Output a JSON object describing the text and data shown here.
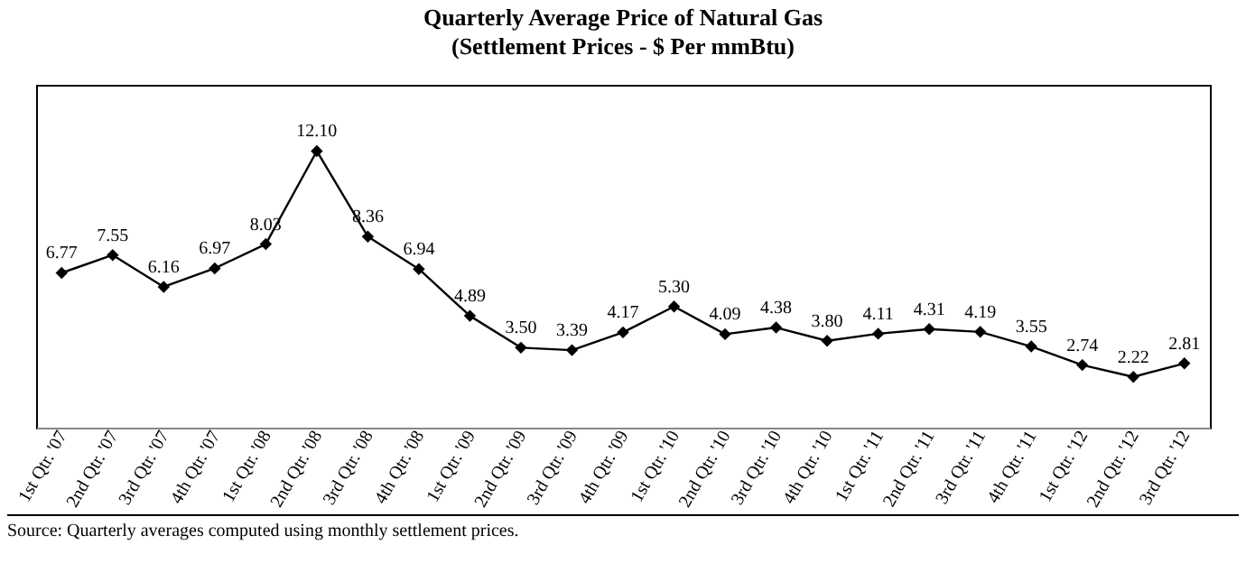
{
  "chart_data": {
    "type": "line",
    "title": "Quarterly Average Price of Natural Gas",
    "subtitle": "(Settlement Prices - $ Per mmBtu)",
    "categories": [
      "1st Qtr. '07",
      "2nd Qtr. '07",
      "3rd Qtr. '07",
      "4th Qtr. '07",
      "1st Qtr. '08",
      "2nd Qtr. '08",
      "3rd Qtr. '08",
      "4th Qtr. '08",
      "1st Qtr. '09",
      "2nd Qtr. '09",
      "3rd Qtr. '09",
      "4th Qtr. '09",
      "1st Qtr. '10",
      "2nd Qtr. '10",
      "3rd Qtr. '10",
      "4th Qtr. '10",
      "1st Qtr. '11",
      "2nd Qtr. '11",
      "3rd Qtr. '11",
      "4th Qtr. '11",
      "1st Qtr. '12",
      "2nd Qtr. '12",
      "3rd Qtr. '12"
    ],
    "series": [
      {
        "color": "#000000",
        "values": [
          6.77,
          7.55,
          6.16,
          6.97,
          8.03,
          12.1,
          8.36,
          6.94,
          4.89,
          3.5,
          3.39,
          4.17,
          5.3,
          4.09,
          4.38,
          3.8,
          4.11,
          4.31,
          4.19,
          3.55,
          2.74,
          2.22,
          2.81
        ],
        "value_labels": [
          "6.77",
          "7.55",
          "6.16",
          "6.97",
          "8.03",
          "12.10",
          "8.36",
          "6.94",
          "4.89",
          "3.50",
          "3.39",
          "4.17",
          "5.30",
          "4.09",
          "4.38",
          "3.80",
          "4.11",
          "4.31",
          "4.19",
          "3.55",
          "2.74",
          "2.22",
          "2.81"
        ]
      }
    ],
    "ylim": [
      0,
      15
    ],
    "tick_labels": "x",
    "marker": "diamond",
    "line_style": "solid",
    "annotations": [
      "Source:  Quarterly averages computed using monthly settlement prices."
    ]
  }
}
